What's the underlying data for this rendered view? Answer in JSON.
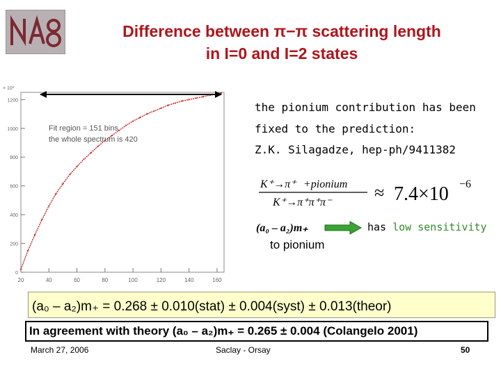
{
  "title": {
    "line1": "Difference between π−π scattering length",
    "line2": "in I=0 and I=2 states"
  },
  "notes": {
    "line1": "the pionium contribution has been",
    "line2": "fixed to the prediction:",
    "line3": "Z.K. Silagadze, hep-ph/9411382"
  },
  "formula": {
    "numerator_left": "K⁺→π⁺",
    "numerator_right": "+pionium",
    "denominator": "K⁺→π⁺π⁺π⁻",
    "approx_sign": "≈",
    "value": "7.4×10",
    "exponent": "−6"
  },
  "sensitivity": {
    "symbol": "(a₀ – a₂)m₊",
    "label": "to pionium",
    "text_prefix": "has ",
    "text_highlight": "low sensitivity"
  },
  "result": {
    "text": "(a₀ – a₂)m₊ = 0.268 ± 0.010(stat) ± 0.004(syst) ± 0.013(theor)"
  },
  "agreement": {
    "text": "In agreement with theory (a₀ – a₂)m₊ = 0.265 ± 0.004 (Colangelo 2001)"
  },
  "footer": {
    "date": "March 27, 2006",
    "venue": "Saclay - Orsay",
    "page": "50"
  },
  "colors": {
    "title": "#b0141b",
    "highlight_green": "#2f8a2a",
    "curve": "#c62828",
    "result_box": "#ffffcc"
  },
  "chart_data": {
    "type": "line",
    "title": "",
    "xlabel": "",
    "ylabel": "",
    "y_multiplier_label": "× 10³",
    "xlim": [
      20,
      165
    ],
    "ylim": [
      0,
      1250
    ],
    "x_ticks": [
      "20",
      "40",
      "60",
      "80",
      "100",
      "120",
      "140",
      "160"
    ],
    "y_ticks": [
      "0",
      "200",
      "400",
      "600",
      "800",
      "1000",
      "1200"
    ],
    "annotations": [
      "Fit region = 151 bins",
      "the whole spectrum is 420"
    ],
    "fit_region": [
      22,
      163
    ],
    "series": [
      {
        "x": [
          20,
          25,
          30,
          35,
          40,
          45,
          50,
          55,
          60,
          65,
          70,
          75,
          80,
          85,
          90,
          95,
          100,
          105,
          110,
          115,
          120,
          125,
          130,
          135,
          140,
          145,
          150,
          155,
          160,
          163
        ],
        "y": [
          20,
          150,
          260,
          365,
          460,
          545,
          615,
          680,
          735,
          785,
          830,
          875,
          915,
          950,
          985,
          1020,
          1050,
          1075,
          1100,
          1120,
          1140,
          1160,
          1175,
          1190,
          1200,
          1210,
          1220,
          1230,
          1240,
          1245
        ]
      }
    ]
  }
}
